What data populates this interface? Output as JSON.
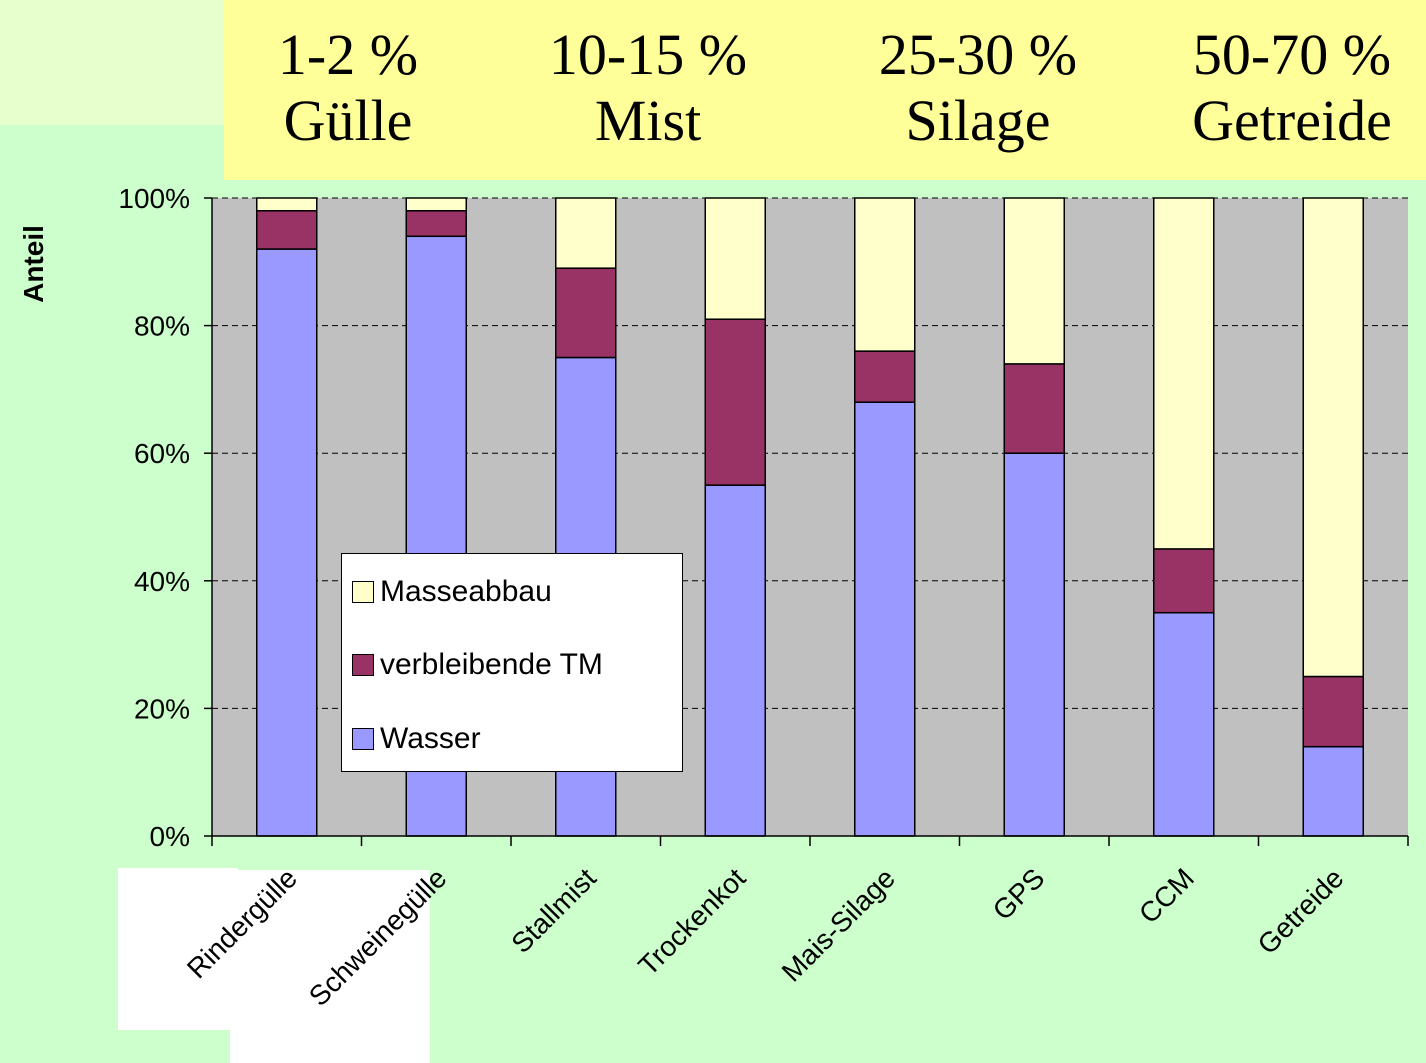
{
  "headers": [
    {
      "range": "1-2 %",
      "label": "Gülle"
    },
    {
      "range": "10-15 %",
      "label": "Mist"
    },
    {
      "range": "25-30 %",
      "label": "Silage"
    },
    {
      "range": "50-70 %",
      "label": "Getreide"
    }
  ],
  "colors": {
    "water": "#9999ff",
    "dm": "#993366",
    "mass": "#ffffcc",
    "plot_bg": "#c0c0c0",
    "page_bg": "#ccffcc",
    "header_bg": "#ffff99"
  },
  "chart_data": {
    "type": "bar",
    "stacked": true,
    "ylabel": "Anteil",
    "xlabel": "",
    "ylim": [
      0,
      100
    ],
    "yticks": [
      "0%",
      "20%",
      "40%",
      "60%",
      "80%",
      "100%"
    ],
    "grid": "horizontal dashed",
    "legend_position": "center-left",
    "categories": [
      "Rindergülle",
      "Schweinegülle",
      "Stallmist",
      "Trockenkot",
      "Mais-Silage",
      "GPS",
      "CCM",
      "Getreide"
    ],
    "series": [
      {
        "name": "Wasser",
        "values": [
          92,
          94,
          75,
          55,
          68,
          60,
          35,
          14
        ]
      },
      {
        "name": "verbleibende TM",
        "values": [
          6,
          4,
          14,
          26,
          8,
          14,
          10,
          11
        ]
      },
      {
        "name": "Masseabbau",
        "values": [
          2,
          2,
          11,
          19,
          24,
          26,
          55,
          75
        ]
      }
    ]
  }
}
